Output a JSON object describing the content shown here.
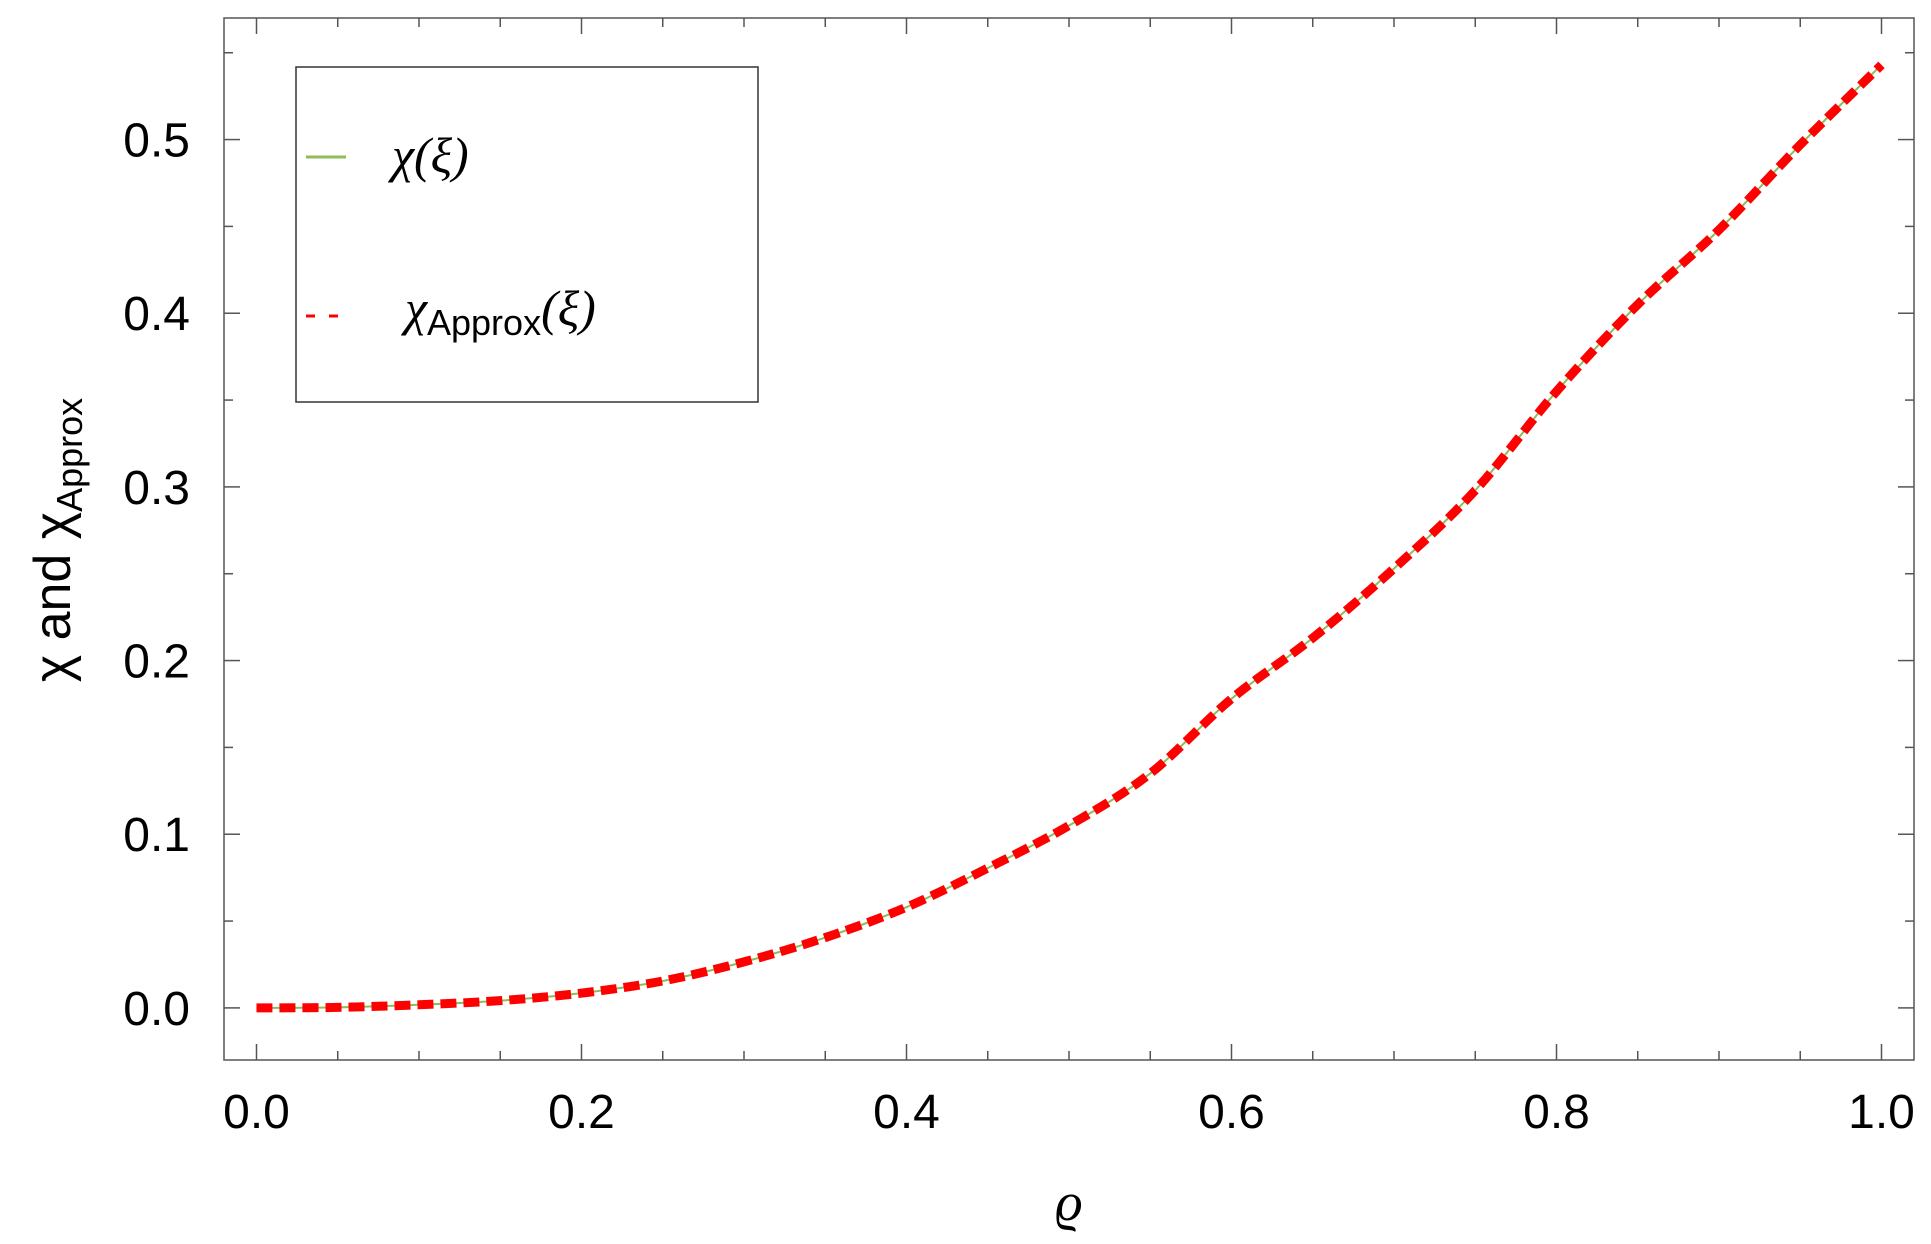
{
  "chart_data": {
    "type": "line",
    "xlabel": "ϱ",
    "ylabel": {
      "main": "χ and χ",
      "sub": "Approx"
    },
    "xlim": [
      -0.02,
      1.02
    ],
    "ylim": [
      -0.03,
      0.57
    ],
    "x_ticks": [
      0.0,
      0.2,
      0.4,
      0.6,
      0.8,
      1.0
    ],
    "x_tick_labels": [
      "0.0",
      "0.2",
      "0.4",
      "0.6",
      "0.8",
      "1.0"
    ],
    "y_ticks": [
      0.0,
      0.1,
      0.2,
      0.3,
      0.4,
      0.5
    ],
    "y_tick_labels": [
      "0.0",
      "0.1",
      "0.2",
      "0.3",
      "0.4",
      "0.5"
    ],
    "grid": false,
    "legend_placement": "top-left",
    "x": [
      0.0,
      0.05,
      0.1,
      0.15,
      0.2,
      0.25,
      0.3,
      0.35,
      0.4,
      0.45,
      0.5,
      0.55,
      0.6,
      0.65,
      0.7,
      0.75,
      0.8,
      0.85,
      0.9,
      0.95,
      1.0
    ],
    "series": [
      {
        "legend": {
          "main": "χ(ξ)",
          "base": "",
          "sub": "",
          "tail": ""
        },
        "color": "#8fbc5a",
        "style": "solid",
        "values": [
          0.0,
          0.0003,
          0.0018,
          0.0042,
          0.0085,
          0.0155,
          0.0265,
          0.0405,
          0.058,
          0.0805,
          0.105,
          0.135,
          0.178,
          0.213,
          0.253,
          0.298,
          0.355,
          0.405,
          0.448,
          0.497,
          0.543
        ]
      },
      {
        "legend": {
          "main": "",
          "base": "χ",
          "sub": "Approx",
          "tail": "(ξ)"
        },
        "color": "#ff0000",
        "style": "dashed",
        "values": [
          0.0,
          0.0003,
          0.0018,
          0.0042,
          0.0085,
          0.0155,
          0.0265,
          0.0405,
          0.058,
          0.0805,
          0.105,
          0.135,
          0.178,
          0.213,
          0.253,
          0.298,
          0.355,
          0.405,
          0.448,
          0.497,
          0.543
        ]
      }
    ]
  }
}
